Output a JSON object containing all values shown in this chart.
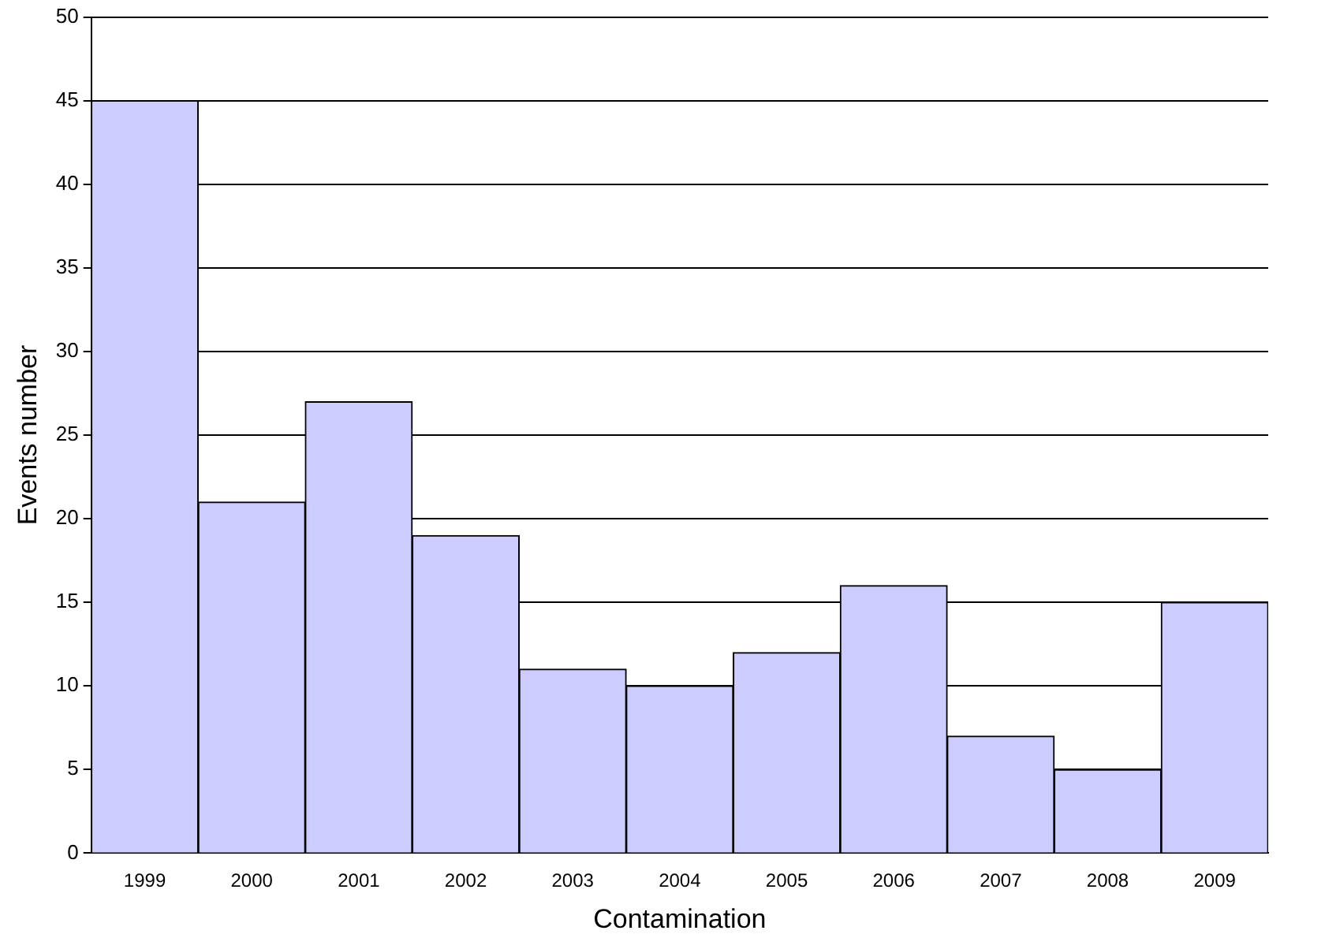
{
  "chart_data": {
    "type": "bar",
    "xlabel": "Contamination",
    "ylabel": "Events number",
    "categories": [
      "1999",
      "2000",
      "2001",
      "2002",
      "2003",
      "2004",
      "2005",
      "2006",
      "2007",
      "2008",
      "2009"
    ],
    "values": [
      45,
      21,
      27,
      19,
      11,
      10,
      12,
      16,
      7,
      5,
      15
    ],
    "color": "#ccccff",
    "ylim": [
      0,
      50
    ],
    "yticks": [
      0,
      5,
      10,
      15,
      20,
      25,
      30,
      35,
      40,
      45,
      50
    ],
    "grid": "y",
    "legend": false
  }
}
